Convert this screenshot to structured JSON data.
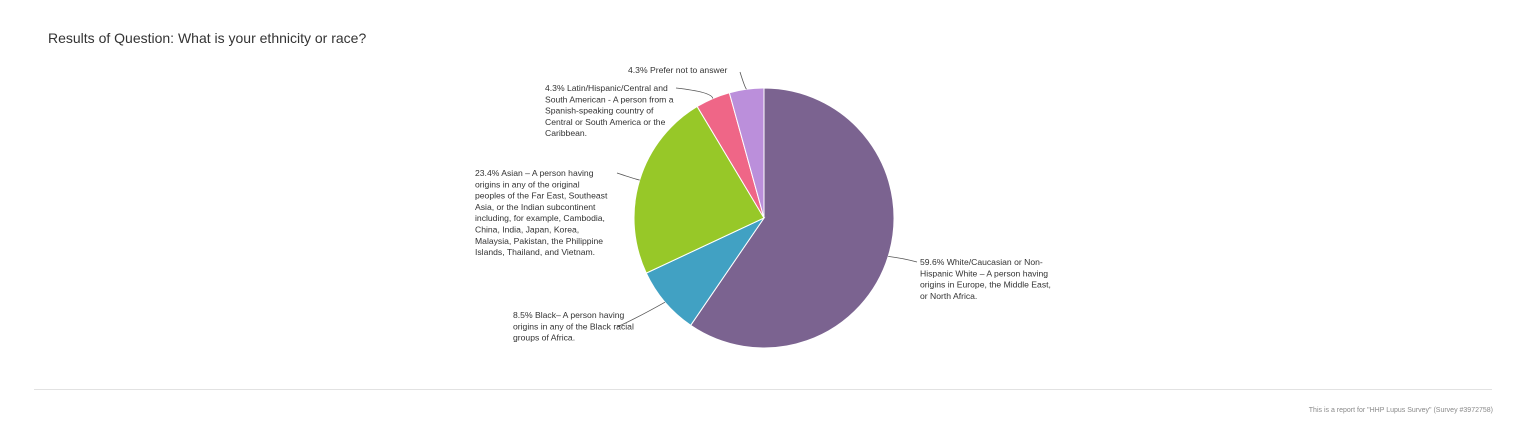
{
  "page": {
    "title": "Results of Question: What is your ethnicity or race?",
    "footer": "This is a report for \"HHP Lupus Survey\" (Survey #3972758)"
  },
  "chart_data": {
    "type": "pie",
    "slices": [
      {
        "pct": 59.6,
        "color": "#7b6390",
        "label": [
          "59.6% White/Caucasian or Non-",
          "Hispanic White – A person having",
          "origins in Europe, the Middle East,",
          "or North Africa."
        ]
      },
      {
        "pct": 8.5,
        "color": "#41a1c3",
        "label": [
          "8.5% Black– A person having",
          "origins in any of the Black racial",
          "groups of Africa."
        ]
      },
      {
        "pct": 23.4,
        "color": "#97c828",
        "label": [
          "23.4% Asian – A person having",
          "origins in any of the original",
          "peoples of the Far East, Southeast",
          "Asia, or the Indian subcontinent",
          "including, for example, Cambodia,",
          "China, India, Japan, Korea,",
          "Malaysia, Pakistan, the Philippine",
          "Islands, Thailand, and Vietnam."
        ]
      },
      {
        "pct": 4.3,
        "color": "#ef6687",
        "label": [
          "4.3% Latin/Hispanic/Central and",
          "South American - A person from a",
          "Spanish-speaking country of",
          "Central or South America or the",
          "Caribbean."
        ]
      },
      {
        "pct": 4.3,
        "color": "#bb8fdb",
        "label": [
          "4.3% Prefer not to answer"
        ]
      }
    ]
  }
}
